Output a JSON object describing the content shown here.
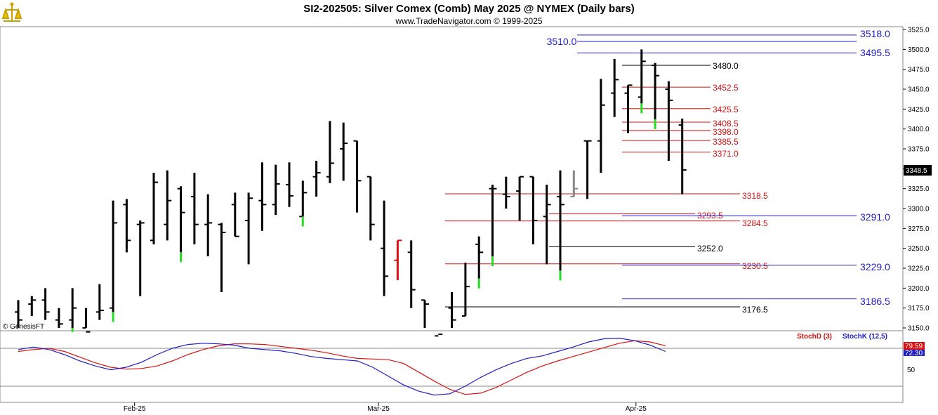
{
  "header": {
    "title": "SI2-202505:  Silver Comex (Comb) May 2025 @ NYMEX  (Daily bars)",
    "subtitle": "www.TradeNavigator.com © 1999-2025",
    "watermark": "© GenesisFT"
  },
  "colors": {
    "blue": "#1f1fcc",
    "red": "#dd1111",
    "green": "#22dd22",
    "bar": "#000000",
    "gray": "#888888"
  },
  "chart_data": {
    "type": "ohlc",
    "price_axis": {
      "ylim": [
        3150,
        3525
      ],
      "ticks": [
        "3525.0",
        "3500.0",
        "3475.0",
        "3450.0",
        "3425.0",
        "3400.0",
        "3375.0",
        "3350.0",
        "3325.0",
        "3300.0",
        "3275.0",
        "3250.0",
        "3225.0",
        "3200.0",
        "3175.0",
        "3150.0"
      ],
      "tick_values": [
        3525,
        3500,
        3475,
        3450,
        3425,
        3400,
        3375,
        3350,
        3325,
        3300,
        3275,
        3250,
        3225,
        3200,
        3175,
        3150
      ],
      "last_price_label": "3348.5",
      "last_price": 3348.5
    },
    "x_labels": [
      "Feb-25",
      "Mar-25",
      "Apr-25"
    ],
    "x_label_bar_index": [
      9,
      27,
      46
    ],
    "bars": [
      [
        3170,
        3185,
        3145,
        3160
      ],
      [
        3180,
        3190,
        3165,
        3185
      ],
      [
        3185,
        3200,
        3160,
        3170
      ],
      [
        3160,
        3175,
        3140,
        3155
      ],
      [
        3160,
        3200,
        3145,
        3175
      ],
      [
        3150,
        3175,
        3130,
        3145
      ],
      [
        3170,
        3205,
        3160,
        3172
      ],
      [
        3175,
        3310,
        3170,
        3282
      ],
      [
        3305,
        3312,
        3245,
        3260
      ],
      [
        3280,
        3285,
        3190,
        3282
      ],
      [
        3260,
        3345,
        3255,
        3333
      ],
      [
        3280,
        3348,
        3260,
        3310
      ],
      [
        3325,
        3328,
        3245,
        3295
      ],
      [
        3315,
        3345,
        3255,
        3280
      ],
      [
        3280,
        3318,
        3240,
        3282
      ],
      [
        3280,
        3282,
        3195,
        3270
      ],
      [
        3305,
        3320,
        3265,
        3265
      ],
      [
        3285,
        3320,
        3230,
        3313
      ],
      [
        3310,
        3358,
        3272,
        3305
      ],
      [
        3305,
        3355,
        3292,
        3331
      ],
      [
        3330,
        3358,
        3302,
        3316
      ],
      [
        3290,
        3335,
        3295,
        3320
      ],
      [
        3340,
        3360,
        3315,
        3345
      ],
      [
        3340,
        3410,
        3332,
        3357
      ],
      [
        3375,
        3408,
        3335,
        3382
      ],
      [
        3385,
        3380,
        3295,
        3335
      ],
      [
        3340,
        3320,
        3260,
        3280
      ],
      [
        3250,
        3310,
        3190,
        3215
      ],
      [
        3235,
        3260,
        3210,
        3260
      ],
      [
        3245,
        3260,
        3175,
        3198
      ],
      [
        3185,
        3165,
        3130,
        3180
      ],
      [
        3140,
        3150,
        3135,
        3142
      ],
      [
        3175,
        3195,
        3150,
        3160
      ],
      [
        3165,
        3232,
        3170,
        3202
      ],
      [
        3255,
        3265,
        3212,
        3245
      ],
      [
        3325,
        3330,
        3240,
        3325
      ],
      [
        3318,
        3340,
        3300,
        3315
      ],
      [
        3322,
        3330,
        3285,
        3340
      ],
      [
        3340,
        3332,
        3255,
        3285
      ],
      [
        3290,
        3330,
        3230,
        3305
      ],
      [
        3315,
        3348,
        3222,
        3305
      ],
      [
        3315,
        3348,
        3320,
        3325
      ],
      [
        3385,
        3380,
        3312,
        3385
      ],
      [
        3385,
        3463,
        3345,
        3430
      ],
      [
        3445,
        3488,
        3415,
        3462
      ],
      [
        3445,
        3442,
        3395,
        3455
      ],
      [
        3440,
        3500,
        3432,
        3485
      ],
      [
        3480,
        3483,
        3412,
        3467
      ],
      [
        3450,
        3460,
        3360,
        3436
      ],
      [
        3405,
        3413,
        3318,
        3348.5
      ]
    ],
    "bar_colors": {
      "green_close": [
        4,
        7,
        12,
        21,
        32,
        34,
        35,
        40,
        46,
        47
      ],
      "red_bars": [
        28
      ],
      "gray_bars": [
        41
      ]
    },
    "levels": [
      {
        "label": "3518.0",
        "value": 3518.0,
        "color": "blue",
        "size": "big"
      },
      {
        "label": "3510.0",
        "value": 3510.0,
        "color": "blue",
        "size": "big"
      },
      {
        "label": "3495.5",
        "value": 3495.5,
        "color": "blue",
        "size": "big"
      },
      {
        "label": "3480.0",
        "value": 3480.0,
        "color": "black",
        "size": "small"
      },
      {
        "label": "3452.5",
        "value": 3452.5,
        "color": "red",
        "size": "small"
      },
      {
        "label": "3425.5",
        "value": 3425.5,
        "color": "red",
        "size": "small"
      },
      {
        "label": "3408.5",
        "value": 3408.5,
        "color": "red",
        "size": "small"
      },
      {
        "label": "3398.0",
        "value": 3398.0,
        "color": "red",
        "size": "small"
      },
      {
        "label": "3385.5",
        "value": 3385.5,
        "color": "red",
        "size": "small"
      },
      {
        "label": "3371.0",
        "value": 3371.0,
        "color": "red",
        "size": "small"
      },
      {
        "label": "3318.5",
        "value": 3318.5,
        "color": "red",
        "size": "small"
      },
      {
        "label": "3293.5",
        "value": 3293.5,
        "color": "red",
        "size": "small"
      },
      {
        "label": "3291.0",
        "value": 3291.0,
        "color": "blue",
        "size": "big"
      },
      {
        "label": "3284.5",
        "value": 3284.5,
        "color": "red",
        "size": "small"
      },
      {
        "label": "3252.0",
        "value": 3252.0,
        "color": "black",
        "size": "small"
      },
      {
        "label": "3230.5",
        "value": 3230.5,
        "color": "red",
        "size": "small"
      },
      {
        "label": "3229.0",
        "value": 3229.0,
        "color": "blue",
        "size": "big"
      },
      {
        "label": "3186.5",
        "value": 3186.5,
        "color": "blue",
        "size": "big"
      },
      {
        "label": "3176.5",
        "value": 3176.5,
        "color": "black",
        "size": "small"
      }
    ],
    "indicator": {
      "series": [
        {
          "name": "StochD (3)",
          "color": "red",
          "values": [
            75,
            78,
            80,
            75,
            66,
            57,
            50,
            47,
            48,
            52,
            60,
            70,
            78,
            84,
            87,
            87,
            86,
            83,
            80,
            77,
            73,
            68,
            64,
            63,
            62,
            56,
            42,
            28,
            15,
            7,
            9,
            18,
            30,
            42,
            52,
            60,
            67,
            74,
            81,
            88,
            92,
            90,
            84
          ]
        },
        {
          "name": "StochK (12,5)",
          "color": "blue",
          "values": [
            78,
            82,
            78,
            70,
            60,
            52,
            46,
            50,
            58,
            70,
            80,
            86,
            88,
            87,
            85,
            80,
            78,
            76,
            72,
            67,
            64,
            62,
            60,
            50,
            36,
            22,
            12,
            6,
            8,
            20,
            34,
            46,
            56,
            64,
            68,
            75,
            82,
            90,
            95,
            96,
            92,
            85,
            75
          ]
        }
      ],
      "last_labels": [
        "79.59",
        "72.30"
      ],
      "tick_label": "50"
    }
  }
}
